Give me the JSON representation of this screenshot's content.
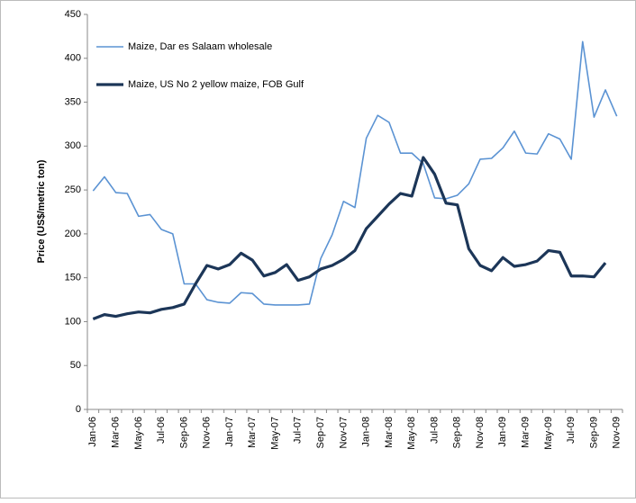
{
  "chart_data": {
    "type": "line",
    "y_label": "Price (US$/metric ton)",
    "categories": [
      "Jan-06",
      null,
      "Mar-06",
      null,
      "May-06",
      null,
      "Jul-06",
      null,
      "Sep-06",
      null,
      "Nov-06",
      null,
      "Jan-07",
      null,
      "Mar-07",
      null,
      "May-07",
      null,
      "Jul-07",
      null,
      "Sep-07",
      null,
      "Nov-07",
      null,
      "Jan-08",
      null,
      "Mar-08",
      null,
      "May-08",
      null,
      "Jul-08",
      null,
      "Sep-08",
      null,
      "Nov-08",
      null,
      "Jan-09",
      null,
      "Mar-09",
      null,
      "May-09",
      null,
      "Jul-09",
      null,
      "Sep-09",
      null,
      "Nov-09"
    ],
    "series": [
      {
        "name": "Maize, Dar es Salaam wholesale",
        "color": "#5b93d3",
        "width": 1.6,
        "values": [
          249,
          265,
          247,
          246,
          220,
          222,
          205,
          200,
          143,
          143,
          125,
          122,
          121,
          133,
          132,
          120,
          119,
          119,
          119,
          120,
          172,
          199,
          237,
          230,
          309,
          335,
          327,
          292,
          292,
          280,
          241,
          240,
          244,
          257,
          285,
          286,
          298,
          317,
          292,
          291,
          314,
          308,
          285,
          419,
          333,
          364,
          334
        ]
      },
      {
        "name": "Maize, US No 2 yellow maize, FOB Gulf",
        "color": "#1c3658",
        "width": 3.2,
        "values": [
          103,
          108,
          106,
          109,
          111,
          110,
          114,
          116,
          120,
          143,
          164,
          160,
          165,
          178,
          170,
          152,
          156,
          165,
          147,
          151,
          160,
          164,
          171,
          181,
          206,
          220,
          234,
          246,
          243,
          287,
          268,
          235,
          233,
          183,
          164,
          158,
          173,
          163,
          165,
          169,
          181,
          179,
          152,
          152,
          151,
          167,
          null
        ]
      }
    ],
    "ylim": [
      0,
      450
    ],
    "yticks": [
      0,
      50,
      100,
      150,
      200,
      250,
      300,
      350,
      400,
      450
    ],
    "grid": false,
    "legend": "upper left"
  }
}
